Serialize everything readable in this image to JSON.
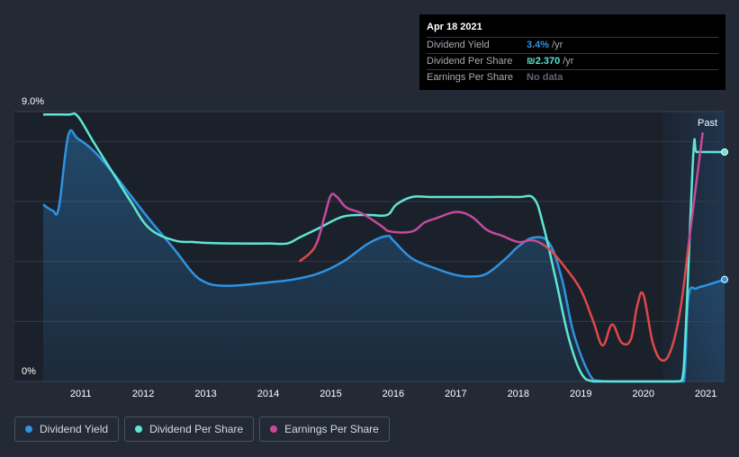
{
  "tooltip": {
    "date": "Apr 18 2021",
    "rows": [
      {
        "label": "Dividend Yield",
        "value": "3.4%",
        "unit": "/yr",
        "color": "#2e93e2"
      },
      {
        "label": "Dividend Per Share",
        "value": "₪2.370",
        "unit": "/yr",
        "color": "#5ee6d4"
      },
      {
        "label": "Earnings Per Share",
        "value": "No data",
        "unit": "",
        "color": "#5f6570"
      }
    ]
  },
  "legend": [
    {
      "label": "Dividend Yield",
      "color": "#2e93e2"
    },
    {
      "label": "Dividend Per Share",
      "color": "#5ee6d4"
    },
    {
      "label": "Earnings Per Share",
      "color": "#c54a9e"
    }
  ],
  "past_label": "Past",
  "chart_data": {
    "type": "line",
    "title": "",
    "xlabel": "",
    "ylabel": "",
    "ylim": [
      0,
      9.0
    ],
    "xlim": [
      2010.4,
      2021.3
    ],
    "y_tick_labels": [
      "9.0%",
      "0%"
    ],
    "x_tick_labels": [
      "2011",
      "2012",
      "2013",
      "2014",
      "2015",
      "2016",
      "2017",
      "2018",
      "2019",
      "2020",
      "2021"
    ],
    "x_ticks": [
      2011,
      2012,
      2013,
      2014,
      2015,
      2016,
      2017,
      2018,
      2019,
      2020,
      2021
    ],
    "past_region_start": 2020.3,
    "series": [
      {
        "name": "Dividend Yield",
        "color": "#2e93e2",
        "area": true,
        "x": [
          2010.4,
          2010.55,
          2010.65,
          2010.8,
          2010.95,
          2011.2,
          2011.5,
          2011.8,
          2012.1,
          2012.5,
          2012.8,
          2013.0,
          2013.2,
          2013.5,
          2014.0,
          2014.4,
          2014.8,
          2015.2,
          2015.6,
          2015.9,
          2016.0,
          2016.3,
          2016.7,
          2017.0,
          2017.25,
          2017.5,
          2017.8,
          2018.0,
          2018.25,
          2018.5,
          2018.7,
          2018.9,
          2019.2,
          2019.5,
          2020.0,
          2020.5,
          2020.65,
          2020.72,
          2020.85,
          2021.0,
          2021.15,
          2021.3
        ],
        "values": [
          5.9,
          5.7,
          5.8,
          8.2,
          8.1,
          7.7,
          7.0,
          6.2,
          5.4,
          4.4,
          3.6,
          3.3,
          3.2,
          3.2,
          3.3,
          3.4,
          3.6,
          4.0,
          4.6,
          4.85,
          4.7,
          4.1,
          3.75,
          3.55,
          3.5,
          3.6,
          4.1,
          4.5,
          4.8,
          4.6,
          3.4,
          1.5,
          0.05,
          0.0,
          0.0,
          0.0,
          0.0,
          2.8,
          3.1,
          3.2,
          3.3,
          3.4
        ]
      },
      {
        "name": "Dividend Per Share",
        "color": "#5ee6d4",
        "area": false,
        "x": [
          2010.4,
          2010.8,
          2010.95,
          2011.2,
          2011.5,
          2011.8,
          2012.1,
          2012.5,
          2012.8,
          2013.0,
          2013.5,
          2014.0,
          2014.3,
          2014.5,
          2014.8,
          2015.2,
          2015.6,
          2015.9,
          2016.05,
          2016.3,
          2016.6,
          2017.0,
          2017.5,
          2018.0,
          2018.25,
          2018.4,
          2018.6,
          2018.8,
          2019.0,
          2019.2,
          2019.6,
          2020.0,
          2020.5,
          2020.62,
          2020.68,
          2020.8,
          2020.85,
          2021.0,
          2021.3
        ],
        "values": [
          8.9,
          8.9,
          8.85,
          8.0,
          7.0,
          6.0,
          5.1,
          4.7,
          4.65,
          4.62,
          4.6,
          4.6,
          4.6,
          4.8,
          5.1,
          5.5,
          5.55,
          5.55,
          5.9,
          6.15,
          6.15,
          6.15,
          6.15,
          6.15,
          6.1,
          5.2,
          3.4,
          1.5,
          0.3,
          0.0,
          0.0,
          0.0,
          0.0,
          0.05,
          1.8,
          7.6,
          7.65,
          7.65,
          7.65
        ]
      },
      {
        "name": "Earnings Per Share",
        "color": "#c54a9e",
        "area": false,
        "x": [
          2014.5,
          2014.75,
          2014.9,
          2015.0,
          2015.1,
          2015.25,
          2015.5,
          2015.8,
          2015.95,
          2016.3,
          2016.5,
          2016.7,
          2017.0,
          2017.25,
          2017.5,
          2017.75,
          2018.0,
          2018.25,
          2018.5,
          2018.75,
          2019.0,
          2019.2,
          2019.35,
          2019.5,
          2019.65,
          2019.8,
          2019.9,
          2020.0,
          2020.15,
          2020.3,
          2020.45,
          2020.6,
          2020.75,
          2020.95
        ],
        "values": [
          4.0,
          4.5,
          5.5,
          6.2,
          6.15,
          5.8,
          5.6,
          5.2,
          5.0,
          5.0,
          5.3,
          5.45,
          5.65,
          5.5,
          5.05,
          4.85,
          4.65,
          4.7,
          4.4,
          3.8,
          3.05,
          2.0,
          1.2,
          1.9,
          1.3,
          1.4,
          2.5,
          2.9,
          1.3,
          0.7,
          1.1,
          2.5,
          5.0,
          8.3
        ]
      }
    ]
  }
}
